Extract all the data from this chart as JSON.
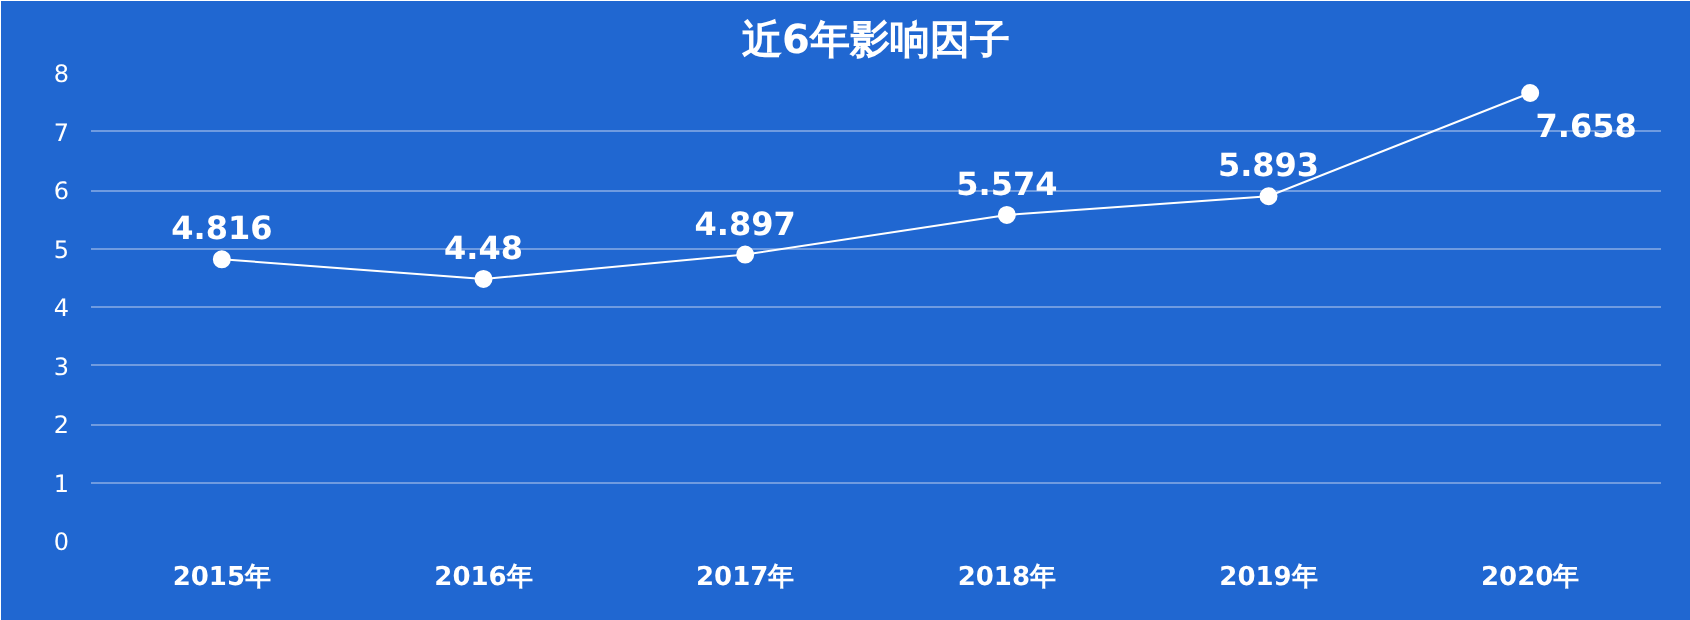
{
  "chart_data": {
    "type": "line",
    "title": "近6年影响因子",
    "categories": [
      "2015年",
      "2016年",
      "2017年",
      "2018年",
      "2019年",
      "2020年"
    ],
    "values": [
      4.816,
      4.48,
      4.897,
      5.574,
      5.893,
      7.658
    ],
    "color": "#ffffff",
    "ylim": [
      0,
      8
    ],
    "yticks": [
      0,
      1,
      2,
      3,
      4,
      5,
      6,
      7,
      8
    ],
    "grid": "y",
    "marker": "circle",
    "data_labels": true,
    "line_style": "solid"
  }
}
